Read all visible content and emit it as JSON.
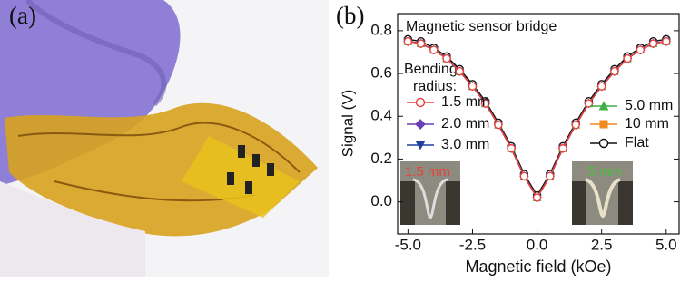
{
  "panel_labels": [
    "(a)",
    "(b)"
  ],
  "chart_data": {
    "type": "line",
    "title": "Magnetic sensor bridge",
    "x_label": "Magnetic field (kOe)",
    "y_label": "Signal (V)",
    "legend_title": [
      "Bending",
      "radius:"
    ],
    "x": [
      -5.0,
      -4.5,
      -4.0,
      -3.5,
      -3.0,
      -2.5,
      -2.0,
      -1.5,
      -1.0,
      -0.5,
      0.0,
      0.5,
      1.0,
      1.5,
      2.0,
      2.5,
      3.0,
      3.5,
      4.0,
      4.5,
      5.0
    ],
    "series": [
      {
        "name": "1.5 mm",
        "color": "#e8403a",
        "marker": "circle-open",
        "values": [
          0.75,
          0.74,
          0.71,
          0.67,
          0.61,
          0.54,
          0.46,
          0.36,
          0.25,
          0.12,
          0.02,
          0.12,
          0.25,
          0.36,
          0.46,
          0.54,
          0.61,
          0.67,
          0.71,
          0.74,
          0.75
        ]
      },
      {
        "name": "2.0 mm",
        "color": "#6a3fb5",
        "marker": "diamond",
        "values": [
          0.75,
          0.74,
          0.71,
          0.67,
          0.61,
          0.54,
          0.46,
          0.36,
          0.25,
          0.12,
          0.02,
          0.12,
          0.25,
          0.36,
          0.46,
          0.54,
          0.61,
          0.67,
          0.71,
          0.74,
          0.75
        ]
      },
      {
        "name": "3.0 mm",
        "color": "#1f3f9e",
        "marker": "triangle-down",
        "values": [
          0.75,
          0.74,
          0.71,
          0.67,
          0.61,
          0.54,
          0.46,
          0.36,
          0.25,
          0.12,
          0.02,
          0.12,
          0.25,
          0.36,
          0.46,
          0.54,
          0.61,
          0.67,
          0.71,
          0.74,
          0.75
        ]
      },
      {
        "name": "5.0 mm",
        "color": "#3cb044",
        "marker": "triangle-up",
        "values": [
          0.75,
          0.74,
          0.71,
          0.67,
          0.61,
          0.54,
          0.46,
          0.36,
          0.25,
          0.12,
          0.02,
          0.12,
          0.25,
          0.36,
          0.46,
          0.54,
          0.61,
          0.67,
          0.71,
          0.74,
          0.75
        ]
      },
      {
        "name": "10 mm",
        "color": "#f08a1c",
        "marker": "square",
        "values": [
          0.75,
          0.74,
          0.71,
          0.67,
          0.61,
          0.54,
          0.46,
          0.36,
          0.25,
          0.12,
          0.02,
          0.12,
          0.25,
          0.36,
          0.46,
          0.54,
          0.61,
          0.67,
          0.71,
          0.74,
          0.75
        ]
      },
      {
        "name": "Flat",
        "color": "#111111",
        "marker": "circle-open",
        "values": [
          0.76,
          0.75,
          0.72,
          0.68,
          0.62,
          0.55,
          0.47,
          0.37,
          0.26,
          0.13,
          0.03,
          0.13,
          0.26,
          0.37,
          0.47,
          0.55,
          0.62,
          0.68,
          0.72,
          0.75,
          0.76
        ]
      }
    ],
    "annotations": [
      {
        "text": "1.5 mm",
        "color": "#e8403a"
      },
      {
        "text": "5 mm",
        "color": "#4bbf3a"
      }
    ],
    "xlim": [
      -5.4,
      5.5
    ],
    "ylim": [
      -0.15,
      0.88
    ],
    "xticks": [
      {
        "value": -5.0,
        "label": "-5.0"
      },
      -2.5,
      {
        "value": 0.0,
        "label": "0.0"
      },
      2.5,
      {
        "value": 5.0,
        "label": "5.0"
      }
    ],
    "yticks": [
      {
        "value": 0.0,
        "label": "0.0"
      },
      0.2,
      0.4,
      0.6,
      0.8
    ]
  }
}
